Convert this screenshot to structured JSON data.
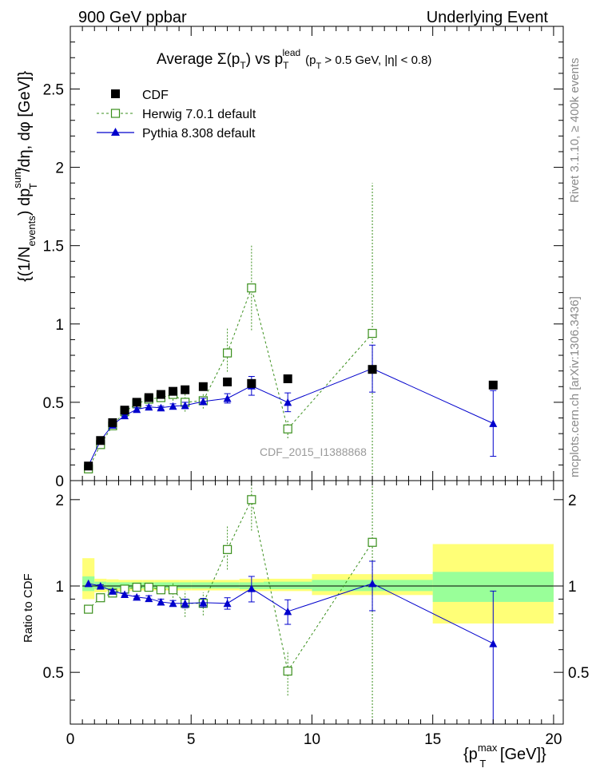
{
  "header": {
    "left": "900 GeV ppbar",
    "right": "Underlying Event"
  },
  "side_labels": {
    "rivet": "Rivet 3.1.10, ≥ 400k events",
    "mcplots": "mcplots.cern.ch [arXiv:1306.3436]"
  },
  "watermark": "CDF_2015_I1388868",
  "colors": {
    "data": "#000000",
    "herwig": "#3a8f1c",
    "pythia": "#0000cc",
    "band_outer": "#ffff77",
    "band_inner": "#99ff99"
  },
  "chart_data": [
    {
      "type": "scatter",
      "panel": "main",
      "title_parts": {
        "main": "Average Σ(p",
        "sub_T": "T",
        "vs": ") vs p",
        "sup_lead": "lead",
        "cuts": "(p",
        "cut_rest": " > 0.5 GeV, |η| < 0.8)"
      },
      "ylabel_parts": {
        "open": "{(1/N",
        "sub_events": "events",
        "mid": ") dp",
        "sup_sum": "sum",
        "sub_T": "T",
        "tail": "/dη, dφ [GeV]}"
      },
      "xlim": [
        0,
        20.4
      ],
      "ylim": [
        0,
        2.9
      ],
      "yticks": [
        "0",
        "0.5",
        "1",
        "1.5",
        "2",
        "2.5"
      ],
      "ytick_values": [
        0,
        0.5,
        1,
        1.5,
        2,
        2.5
      ],
      "legend": {
        "position": "top-left",
        "entries": [
          "CDF",
          "Herwig 7.0.1 default",
          "Pythia 8.308 default"
        ]
      },
      "series": [
        {
          "name": "CDF",
          "marker": "filled-square",
          "x": [
            0.75,
            1.25,
            1.75,
            2.25,
            2.75,
            3.25,
            3.75,
            4.25,
            4.75,
            5.5,
            6.5,
            7.5,
            9.0,
            12.5,
            17.5
          ],
          "y": [
            0.093,
            0.256,
            0.37,
            0.45,
            0.5,
            0.53,
            0.55,
            0.57,
            0.58,
            0.6,
            0.63,
            0.62,
            0.65,
            0.71,
            0.61
          ]
        },
        {
          "name": "Herwig 7.0.1 default",
          "marker": "open-square",
          "line": "dashed",
          "x": [
            0.75,
            1.25,
            1.75,
            2.25,
            2.75,
            3.25,
            3.75,
            4.25,
            4.75,
            5.5,
            6.5,
            7.5,
            9.0,
            12.5
          ],
          "y": [
            0.075,
            0.23,
            0.35,
            0.44,
            0.49,
            0.52,
            0.53,
            0.55,
            0.5,
            0.51,
            0.815,
            1.23,
            0.33,
            0.94
          ],
          "err_lo": [
            0.0,
            0.01,
            0.01,
            0.01,
            0.01,
            0.015,
            0.02,
            0.04,
            0.06,
            0.05,
            0.12,
            0.27,
            0.06,
            0.94
          ],
          "err_hi": [
            0.0,
            0.01,
            0.01,
            0.01,
            0.01,
            0.015,
            0.02,
            0.04,
            0.06,
            0.05,
            0.16,
            0.27,
            0.06,
            0.96
          ]
        },
        {
          "name": "Pythia 8.308 default",
          "marker": "filled-triangle",
          "line": "solid",
          "x": [
            0.75,
            1.25,
            1.75,
            2.25,
            2.75,
            3.25,
            3.75,
            4.25,
            4.75,
            5.5,
            6.5,
            7.5,
            9.0,
            12.5,
            17.5
          ],
          "y": [
            0.095,
            0.256,
            0.355,
            0.415,
            0.455,
            0.47,
            0.465,
            0.475,
            0.48,
            0.505,
            0.525,
            0.605,
            0.5,
            0.715,
            0.365
          ],
          "err_lo": [
            0.0,
            0.005,
            0.005,
            0.005,
            0.01,
            0.01,
            0.01,
            0.015,
            0.02,
            0.02,
            0.03,
            0.06,
            0.06,
            0.15,
            0.21
          ],
          "err_hi": [
            0.0,
            0.005,
            0.005,
            0.005,
            0.01,
            0.01,
            0.01,
            0.015,
            0.02,
            0.02,
            0.03,
            0.06,
            0.06,
            0.15,
            0.21
          ]
        }
      ]
    },
    {
      "type": "scatter",
      "panel": "ratio",
      "ylabel": "Ratio to CDF",
      "xlabel_parts": {
        "open": "{p",
        "sup_max": "max",
        "sub_T": "T",
        "tail": " [GeV]}"
      },
      "xlim": [
        0,
        20.4
      ],
      "ylim": [
        0.33,
        2.33
      ],
      "xticks": [
        "0",
        "5",
        "10",
        "15",
        "20"
      ],
      "xtick_values": [
        0,
        5,
        10,
        15,
        20
      ],
      "yticks": [
        "0.5",
        "1",
        "2"
      ],
      "ytick_values": [
        0.5,
        1,
        2
      ],
      "reference_line": 1,
      "data_uncertainty_bands": {
        "bins": [
          [
            0.5,
            1.0
          ],
          [
            1.0,
            1.5
          ],
          [
            1.5,
            2.0
          ],
          [
            2.0,
            2.5
          ],
          [
            2.5,
            3.0
          ],
          [
            3.0,
            3.5
          ],
          [
            3.5,
            4.0
          ],
          [
            4.0,
            4.5
          ],
          [
            4.5,
            5.0
          ],
          [
            5.0,
            6.0
          ],
          [
            6.0,
            7.0
          ],
          [
            7.0,
            8.0
          ],
          [
            8.0,
            10.0
          ],
          [
            10.0,
            15.0
          ],
          [
            15.0,
            20.0
          ]
        ],
        "outer_lo": [
          0.9,
          0.95,
          0.96,
          0.96,
          0.965,
          0.965,
          0.965,
          0.965,
          0.965,
          0.965,
          0.965,
          0.96,
          0.96,
          0.93,
          0.74
        ],
        "outer_hi": [
          1.25,
          1.06,
          1.055,
          1.05,
          1.05,
          1.05,
          1.05,
          1.05,
          1.05,
          1.05,
          1.05,
          1.06,
          1.06,
          1.1,
          1.4
        ],
        "inner_lo": [
          0.96,
          0.975,
          0.98,
          0.98,
          0.98,
          0.98,
          0.98,
          0.98,
          0.98,
          0.98,
          0.98,
          0.975,
          0.975,
          0.96,
          0.88
        ],
        "inner_hi": [
          1.08,
          1.035,
          1.03,
          1.03,
          1.03,
          1.03,
          1.03,
          1.03,
          1.03,
          1.03,
          1.03,
          1.03,
          1.035,
          1.05,
          1.12
        ]
      },
      "series": [
        {
          "name": "Herwig 7.0.1 default",
          "marker": "open-square",
          "line": "dashed",
          "x": [
            0.75,
            1.25,
            1.75,
            2.25,
            2.75,
            3.25,
            3.75,
            4.25,
            4.75,
            5.5,
            6.5,
            7.5,
            9.0,
            12.5
          ],
          "y": [
            0.83,
            0.91,
            0.945,
            0.975,
            0.99,
            0.99,
            0.97,
            0.97,
            0.87,
            0.87,
            1.34,
            2.0,
            0.505,
            1.42
          ],
          "err_lo": [
            0.0,
            0.01,
            0.01,
            0.01,
            0.01,
            0.02,
            0.03,
            0.06,
            0.09,
            0.08,
            0.2,
            0.44,
            0.09,
            1.42
          ],
          "err_hi": [
            0.0,
            0.01,
            0.01,
            0.01,
            0.01,
            0.02,
            0.03,
            0.06,
            0.09,
            0.08,
            0.28,
            0.44,
            0.09,
            1.42
          ]
        },
        {
          "name": "Pythia 8.308 default",
          "marker": "filled-triangle",
          "line": "solid",
          "x": [
            0.75,
            1.25,
            1.75,
            2.25,
            2.75,
            3.25,
            3.75,
            4.25,
            4.75,
            5.5,
            6.5,
            7.5,
            9.0,
            12.5,
            17.5
          ],
          "y": [
            1.02,
            1.0,
            0.96,
            0.935,
            0.915,
            0.905,
            0.88,
            0.87,
            0.87,
            0.875,
            0.87,
            0.98,
            0.815,
            1.02,
            0.63
          ],
          "err_lo": [
            0.0,
            0.01,
            0.01,
            0.01,
            0.01,
            0.02,
            0.02,
            0.02,
            0.03,
            0.03,
            0.04,
            0.1,
            0.08,
            0.2,
            0.33
          ],
          "err_hi": [
            0.0,
            0.01,
            0.01,
            0.01,
            0.01,
            0.02,
            0.02,
            0.02,
            0.03,
            0.03,
            0.04,
            0.1,
            0.08,
            0.2,
            0.33
          ]
        }
      ]
    }
  ]
}
